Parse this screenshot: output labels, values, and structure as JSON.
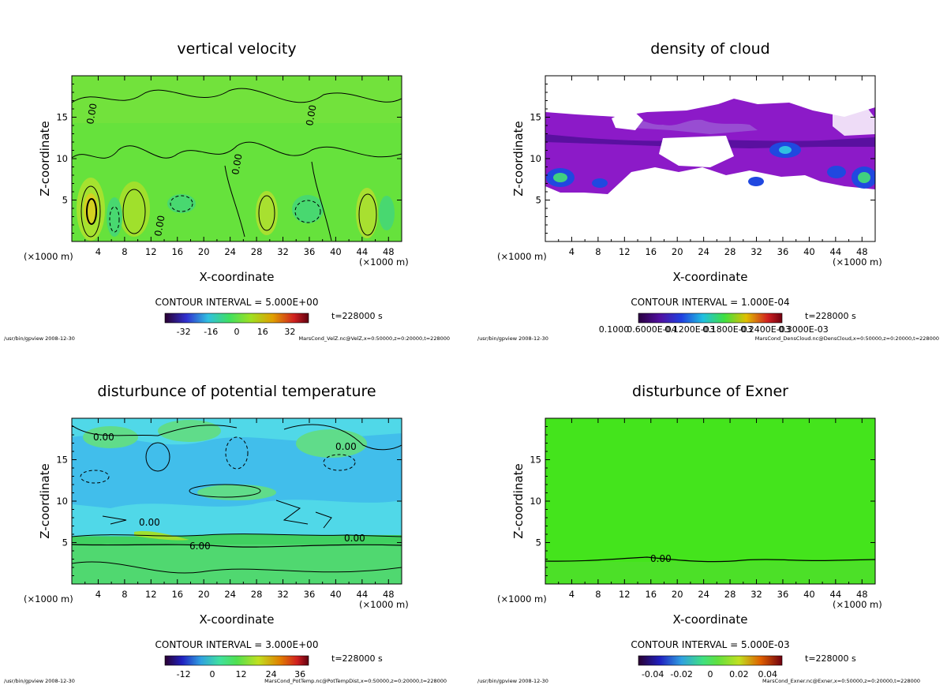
{
  "common": {
    "xlabel": "X-coordinate",
    "ylabel": "Z-coordinate",
    "x_unit": "(×1000 m)",
    "contour_prefix": "CONTOUR INTERVAL =",
    "program_stamp": "/usr/bin/gpview  2008-12-30",
    "x_ticks": [
      "4",
      "8",
      "12",
      "16",
      "20",
      "24",
      "28",
      "32",
      "36",
      "40",
      "44",
      "48"
    ],
    "y_ticks": [
      "5",
      "10",
      "15"
    ],
    "xlim": [
      0,
      50
    ],
    "ylim": [
      0,
      20
    ]
  },
  "panels": [
    {
      "id": "velz",
      "title": "vertical velocity",
      "contour_interval": "5.000E+00",
      "time": "t=228000 s",
      "colorbar_labels": [
        "-32",
        "-16",
        "0",
        "16",
        "32"
      ],
      "file_info": "MarsCond_VelZ.nc@VelZ,x=0:50000,z=0:20000,t=228000",
      "contour_labels": [
        "0.00",
        "0.00",
        "0.00",
        "0.00"
      ]
    },
    {
      "id": "cloud",
      "title": "density of cloud",
      "contour_interval": "1.000E-04",
      "time": "t=228000 s",
      "colorbar_labels": [
        "0.1000",
        "0.6000E-04",
        "0.1200E-03",
        "0.1800E-03",
        "0.2400E-03",
        "0.3000E-03"
      ],
      "file_info": "MarsCond_DensCloud.nc@DensCloud,x=0:50000,z=0:20000,t=228000",
      "contour_labels": []
    },
    {
      "id": "ptemp",
      "title": "disturbunce of potential temperature",
      "contour_interval": "3.000E+00",
      "time": "t=228000 s",
      "colorbar_labels": [
        "-12",
        "0",
        "12",
        "24",
        "36"
      ],
      "file_info": "MarsCond_PotTemp.nc@PotTempDist,x=0:50000,z=0:20000,t=228000",
      "contour_labels": [
        "0.00",
        "0.00",
        "0.00",
        "0.00",
        "6.00"
      ]
    },
    {
      "id": "exner",
      "title": "disturbunce of Exner",
      "contour_interval": "5.000E-03",
      "time": "t=228000 s",
      "colorbar_labels": [
        "-0.04",
        "-0.02",
        "0",
        "0.02",
        "0.04"
      ],
      "file_info": "MarsCond_Exner.nc@Exner,x=0:50000,z=0:20000,t=228000",
      "contour_labels": [
        "0.00"
      ]
    }
  ],
  "chart_data": [
    {
      "type": "heatmap",
      "title": "vertical velocity",
      "xlabel": "X-coordinate (×1000 m)",
      "ylabel": "Z-coordinate",
      "xlim": [
        0,
        50
      ],
      "ylim": [
        0,
        20
      ],
      "contour_interval": 5.0,
      "colorbar_ticks": [
        -32,
        -16,
        0,
        16,
        32
      ],
      "features": [
        {
          "kind": "updraft",
          "x": 3,
          "z": 3.5
        },
        {
          "kind": "updraft",
          "x": 9.5,
          "z": 3.5
        },
        {
          "kind": "updraft",
          "x": 29,
          "z": 2.5
        },
        {
          "kind": "updraft",
          "x": 44.5,
          "z": 3
        },
        {
          "kind": "downdraft",
          "x": 6.5,
          "z": 3
        },
        {
          "kind": "downdraft",
          "x": 15,
          "z": 4
        },
        {
          "kind": "downdraft",
          "x": 36.5,
          "z": 3.5
        },
        {
          "kind": "downdraft",
          "x": 47,
          "z": 3
        }
      ]
    },
    {
      "type": "heatmap",
      "title": "density of cloud",
      "xlabel": "X-coordinate (×1000 m)",
      "ylabel": "Z-coordinate",
      "xlim": [
        0,
        50
      ],
      "ylim": [
        0,
        20
      ],
      "contour_interval": 0.0001,
      "colorbar_ticks": [
        0.1,
        6e-05,
        0.00012,
        0.00018,
        0.00024,
        0.0003
      ],
      "cloud_layer_z": [
        6,
        16
      ]
    },
    {
      "type": "heatmap",
      "title": "disturbunce of potential temperature",
      "xlabel": "X-coordinate (×1000 m)",
      "ylabel": "Z-coordinate",
      "xlim": [
        0,
        50
      ],
      "ylim": [
        0,
        20
      ],
      "contour_interval": 3.0,
      "colorbar_ticks": [
        -12,
        0,
        12,
        24,
        36
      ],
      "zero_line_z": 5.7
    },
    {
      "type": "heatmap",
      "title": "disturbunce of Exner",
      "xlabel": "X-coordinate (×1000 m)",
      "ylabel": "Z-coordinate",
      "xlim": [
        0,
        50
      ],
      "ylim": [
        0,
        20
      ],
      "contour_interval": 0.005,
      "colorbar_ticks": [
        -0.04,
        -0.02,
        0,
        0.02,
        0.04
      ],
      "zero_line_z": 2.9
    }
  ]
}
